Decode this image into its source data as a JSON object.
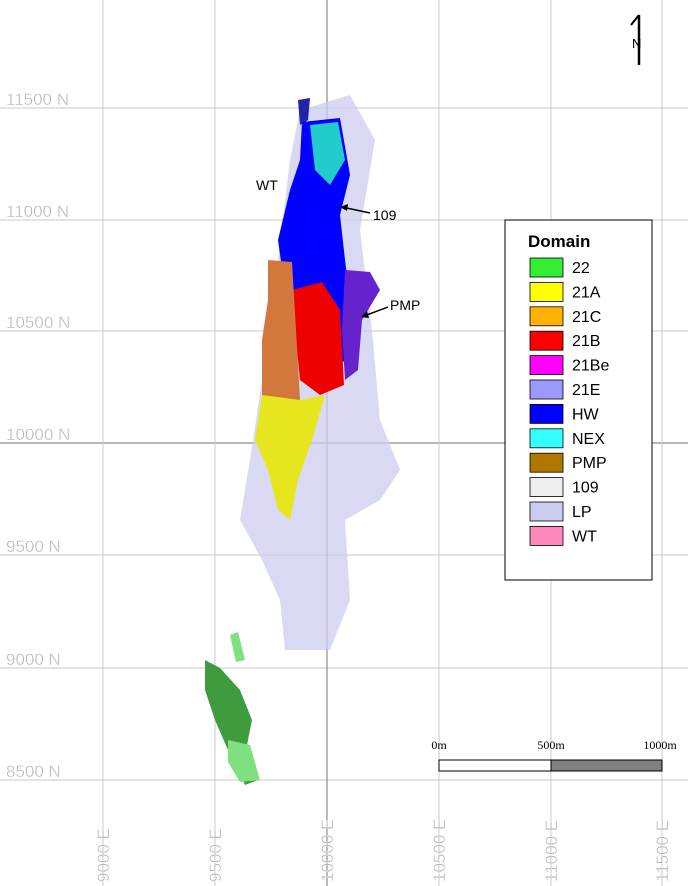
{
  "grid": {
    "northing_labels": [
      "11500 N",
      "11000 N",
      "10500 N",
      "10000 N",
      "9500 N",
      "9000 N",
      "8500 N"
    ],
    "easting_labels": [
      "9000 E",
      "9500 E",
      "10000 E",
      "10500 E",
      "11000 E",
      "11500 E"
    ]
  },
  "north_arrow": "N",
  "annotations": {
    "wt": "WT",
    "drill_109": "109",
    "pmp": "PMP"
  },
  "legend": {
    "title": "Domain",
    "items": [
      {
        "label": "22",
        "color": "#33ee33"
      },
      {
        "label": "21A",
        "color": "#ffff00"
      },
      {
        "label": "21C",
        "color": "#ffb000"
      },
      {
        "label": "21B",
        "color": "#ff0000"
      },
      {
        "label": "21Be",
        "color": "#ff00ff"
      },
      {
        "label": "21E",
        "color": "#9999ff"
      },
      {
        "label": "HW",
        "color": "#0000ff"
      },
      {
        "label": "NEX",
        "color": "#33ffff"
      },
      {
        "label": "PMP",
        "color": "#b07800"
      },
      {
        "label": "109",
        "color": "#eeeeee"
      },
      {
        "label": "LP",
        "color": "#ccccf0"
      },
      {
        "label": "WT",
        "color": "#ff88bb"
      }
    ]
  },
  "scale_bar": {
    "labels": [
      "0m",
      "500m",
      "1000m"
    ]
  }
}
